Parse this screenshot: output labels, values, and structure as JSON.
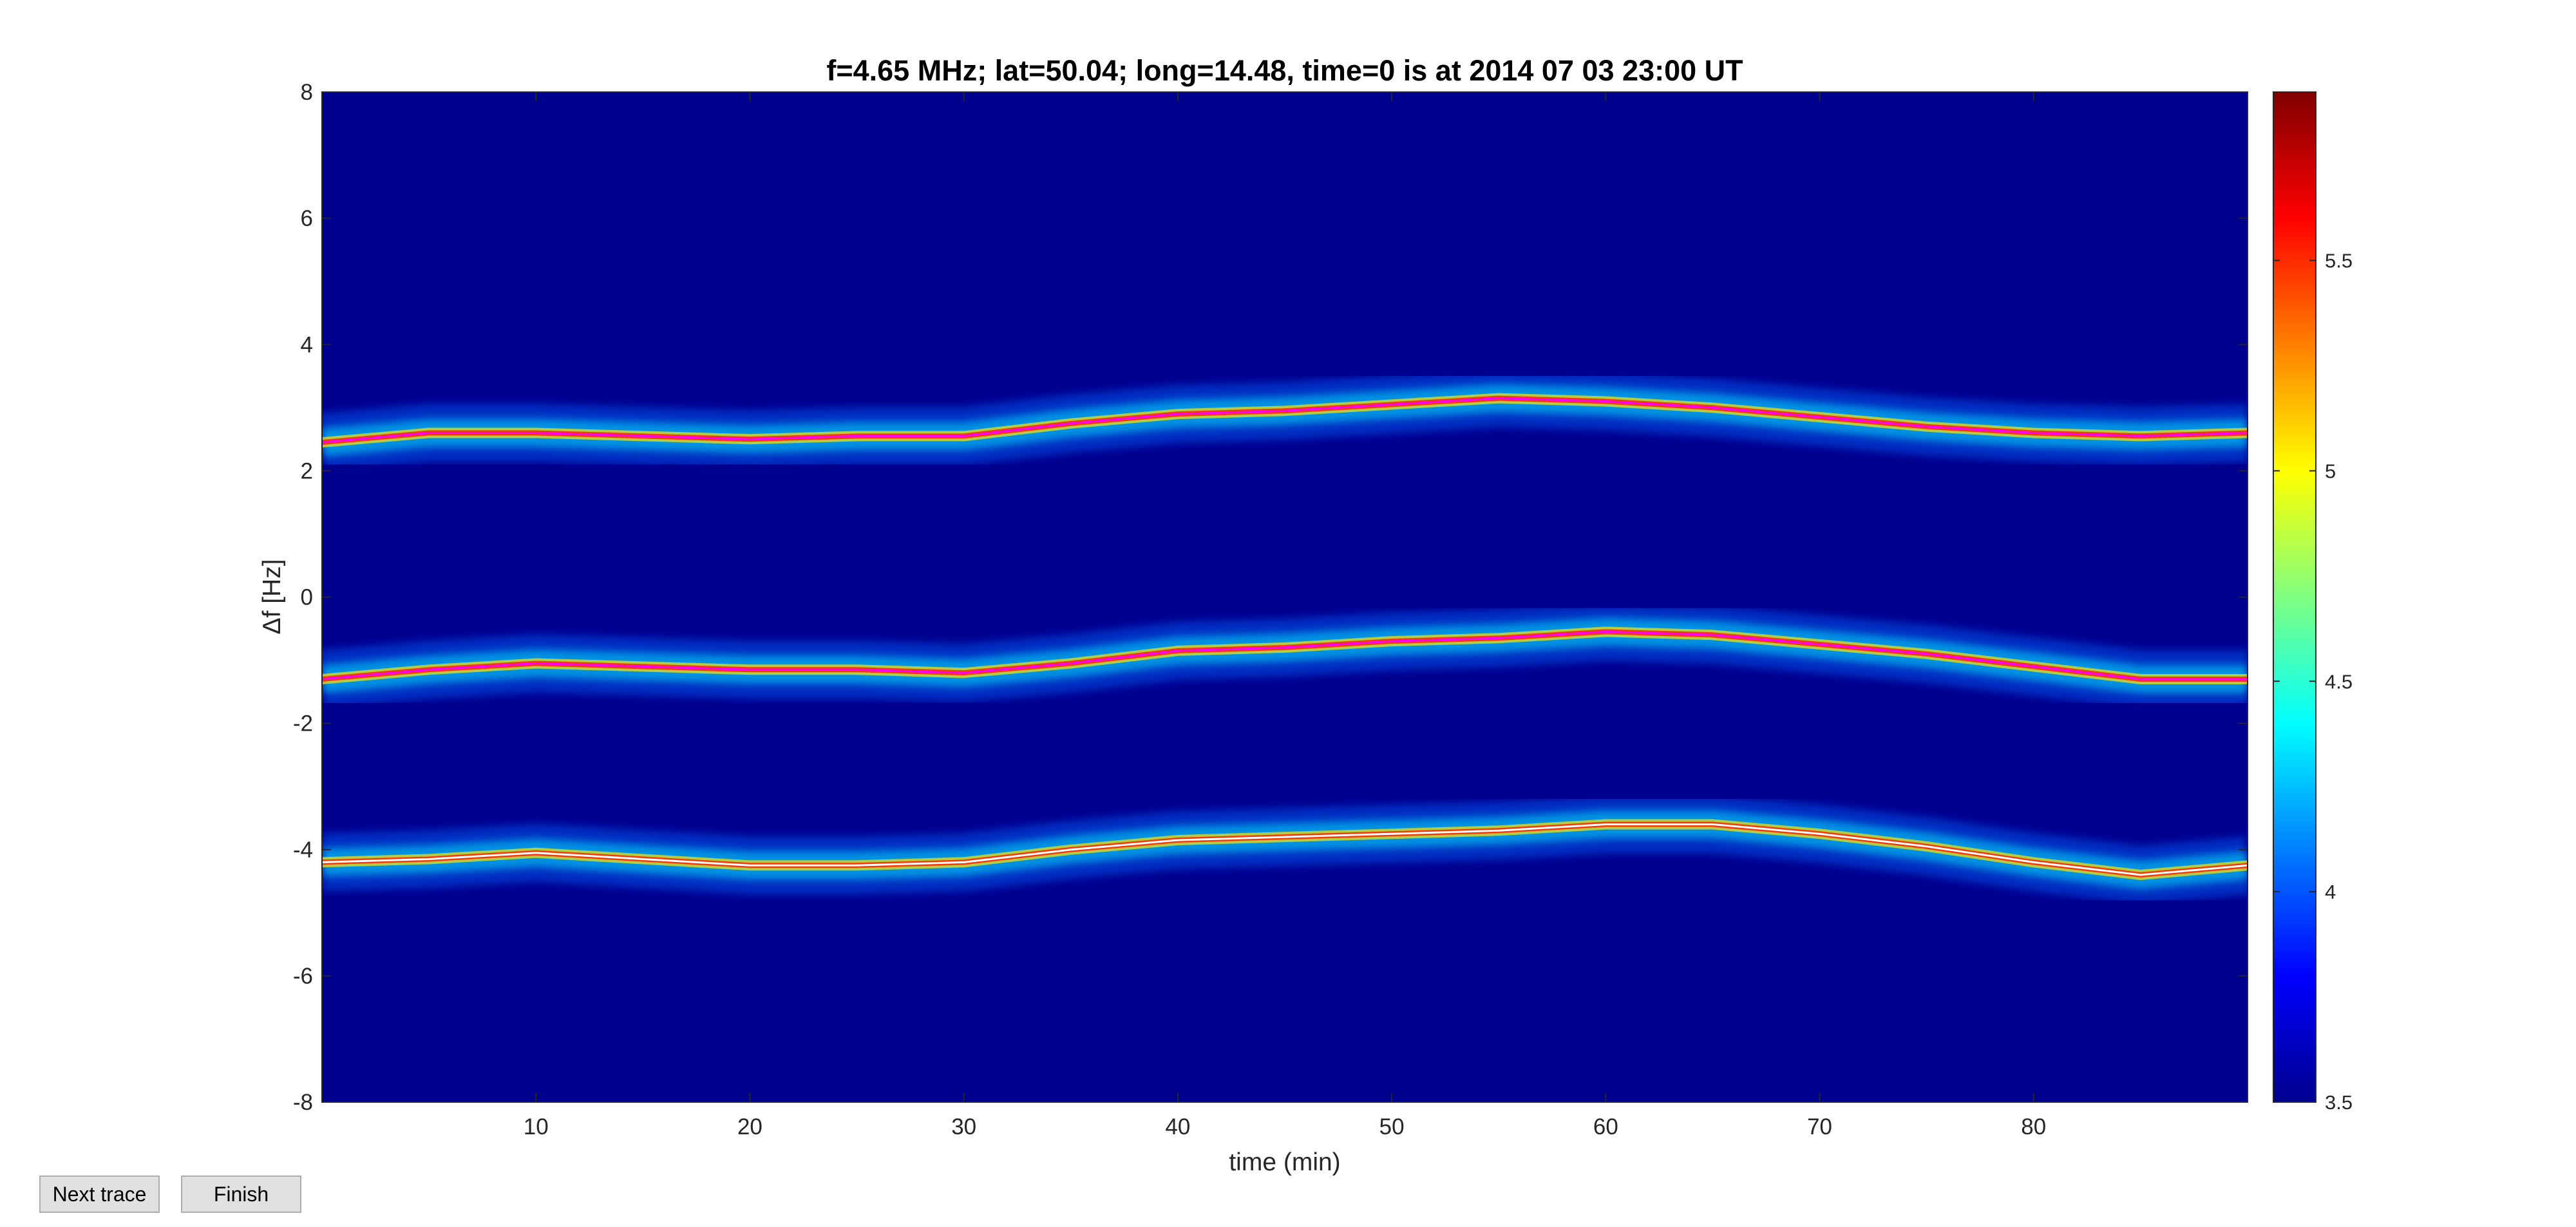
{
  "chart_data": {
    "type": "heatmap",
    "title": "f=4.65 MHz;  lat=50.04; long=14.48, time=0 is at 2014 07 03 23:00 UT",
    "xlabel": "time (min)",
    "ylabel": "Δf [Hz]",
    "xlim": [
      0,
      90
    ],
    "ylim": [
      -8,
      8
    ],
    "x_ticks": [
      10,
      20,
      30,
      40,
      50,
      60,
      70,
      80
    ],
    "y_ticks": [
      -8,
      -6,
      -4,
      -2,
      0,
      2,
      4,
      6,
      8
    ],
    "colorbar": {
      "colormap": "jet",
      "range": [
        3.5,
        5.9
      ],
      "ticks": [
        3.5,
        4,
        4.5,
        5,
        5.5
      ]
    },
    "background_color": "#00008f",
    "traces": [
      {
        "line_color": "#ff00ff",
        "x": [
          0,
          5,
          10,
          15,
          20,
          25,
          30,
          35,
          40,
          45,
          50,
          55,
          60,
          65,
          70,
          75,
          80,
          85,
          90
        ],
        "y": [
          2.45,
          2.6,
          2.6,
          2.55,
          2.5,
          2.55,
          2.55,
          2.75,
          2.9,
          2.95,
          3.05,
          3.15,
          3.1,
          3.0,
          2.85,
          2.7,
          2.6,
          2.55,
          2.6
        ]
      },
      {
        "line_color": "#ff00ff",
        "x": [
          0,
          5,
          10,
          15,
          20,
          25,
          30,
          35,
          40,
          45,
          50,
          55,
          60,
          65,
          70,
          75,
          80,
          85,
          90
        ],
        "y": [
          -1.3,
          -1.15,
          -1.05,
          -1.1,
          -1.15,
          -1.15,
          -1.2,
          -1.05,
          -0.85,
          -0.8,
          -0.7,
          -0.65,
          -0.55,
          -0.6,
          -0.75,
          -0.9,
          -1.1,
          -1.3,
          -1.3
        ]
      },
      {
        "line_color": "#ffffff",
        "x": [
          0,
          5,
          10,
          15,
          20,
          25,
          30,
          35,
          40,
          45,
          50,
          55,
          60,
          65,
          70,
          75,
          80,
          85,
          90
        ],
        "y": [
          -4.2,
          -4.15,
          -4.05,
          -4.15,
          -4.25,
          -4.25,
          -4.2,
          -4.0,
          -3.85,
          -3.8,
          -3.75,
          -3.7,
          -3.6,
          -3.6,
          -3.75,
          -3.95,
          -4.2,
          -4.4,
          -4.25
        ]
      }
    ]
  },
  "controls": {
    "next_trace_label": "Next trace",
    "finish_label": "Finish"
  }
}
